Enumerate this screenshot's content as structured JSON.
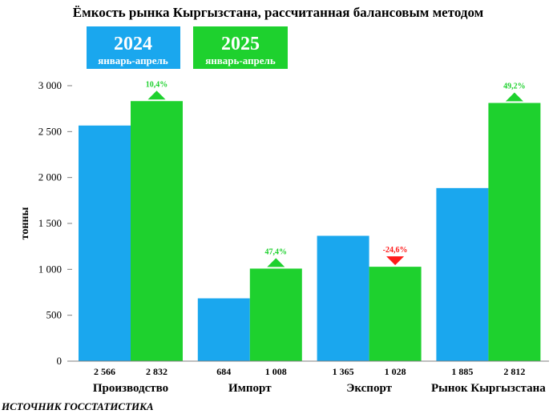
{
  "chart_data": {
    "type": "bar",
    "title": "Ёмкость рынка Кыргызстана, рассчитанная балансовым методом",
    "ylabel": "тонны",
    "xlabel": "",
    "ylim": [
      0,
      3000
    ],
    "yticks": [
      0,
      500,
      1000,
      1500,
      2000,
      2500,
      3000
    ],
    "ytick_labels": [
      "0",
      "500",
      "1 000",
      "1 500",
      "2 000",
      "2 500",
      "3 000"
    ],
    "categories": [
      "Производство",
      "Импорт",
      "Экспорт",
      "Рынок Кыргызстана"
    ],
    "series": [
      {
        "year": "2024",
        "period": "январь-апрель",
        "color": "#1aa7ee",
        "values": [
          2566,
          684,
          1365,
          1885
        ],
        "value_labels": [
          "2 566",
          "684",
          "1 365",
          "1 885"
        ]
      },
      {
        "year": "2025",
        "period": "январь-апрель",
        "color": "#1ed12e",
        "values": [
          2832,
          1008,
          1028,
          2812
        ],
        "value_labels": [
          "2 832",
          "1 008",
          "1 028",
          "2 812"
        ]
      }
    ],
    "changes": [
      {
        "label": "10,4%",
        "direction": "up",
        "color": "#1ed12e"
      },
      {
        "label": "47,4%",
        "direction": "up",
        "color": "#1ed12e"
      },
      {
        "label": "-24,6%",
        "direction": "down",
        "color": "#ff1a1a"
      },
      {
        "label": "49,2%",
        "direction": "up",
        "color": "#1ed12e"
      }
    ],
    "grid": false,
    "legend_position": "top-left"
  },
  "source": "ИСТОЧНИК ГОССТАТИСТИКА"
}
